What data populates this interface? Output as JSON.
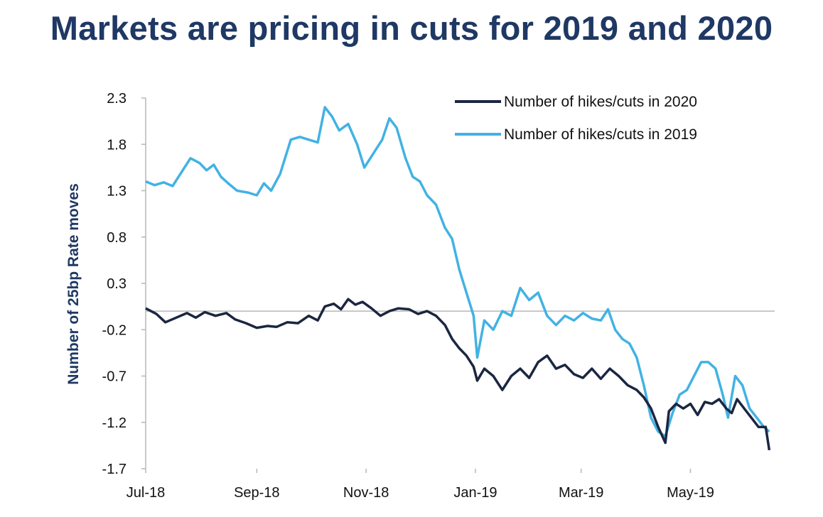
{
  "title": "Markets are pricing in cuts for 2019 and 2020",
  "colors": {
    "title": "#1f3864",
    "series_2020": "#1b2640",
    "series_2019": "#42b2e3",
    "axis": "#b7b7b7"
  },
  "chart_data": {
    "type": "line",
    "title": "Markets are pricing in cuts for 2019 and 2020",
    "xlabel": "",
    "ylabel": "Number of 25bp Rate moves",
    "x_range": [
      "2018-07-01",
      "2019-06-17"
    ],
    "ylim": [
      -1.7,
      2.3
    ],
    "y_ticks": [
      "2.3",
      "1.8",
      "1.3",
      "0.8",
      "0.3",
      "-0.2",
      "-0.7",
      "-1.2",
      "-1.7"
    ],
    "x_ticks": [
      {
        "label": "Jul-18",
        "date": "2018-07-01"
      },
      {
        "label": "Sep-18",
        "date": "2018-09-01"
      },
      {
        "label": "Nov-18",
        "date": "2018-11-01"
      },
      {
        "label": "Jan-19",
        "date": "2019-01-01"
      },
      {
        "label": "Mar-19",
        "date": "2019-03-01"
      },
      {
        "label": "May-19",
        "date": "2019-05-01"
      }
    ],
    "zero_line": 0,
    "grid": false,
    "legend_position": "top-right",
    "series": [
      {
        "name": "Number of hikes/cuts in 2020",
        "color": "#1b2640",
        "points": [
          [
            "2018-07-01",
            0.03
          ],
          [
            "2018-07-07",
            -0.03
          ],
          [
            "2018-07-12",
            -0.12
          ],
          [
            "2018-07-18",
            -0.07
          ],
          [
            "2018-07-24",
            -0.02
          ],
          [
            "2018-07-29",
            -0.07
          ],
          [
            "2018-08-03",
            -0.01
          ],
          [
            "2018-08-09",
            -0.05
          ],
          [
            "2018-08-15",
            -0.02
          ],
          [
            "2018-08-20",
            -0.09
          ],
          [
            "2018-08-26",
            -0.13
          ],
          [
            "2018-09-01",
            -0.18
          ],
          [
            "2018-09-07",
            -0.16
          ],
          [
            "2018-09-12",
            -0.17
          ],
          [
            "2018-09-18",
            -0.12
          ],
          [
            "2018-09-24",
            -0.13
          ],
          [
            "2018-09-30",
            -0.05
          ],
          [
            "2018-10-05",
            -0.1
          ],
          [
            "2018-10-09",
            0.05
          ],
          [
            "2018-10-14",
            0.08
          ],
          [
            "2018-10-18",
            0.02
          ],
          [
            "2018-10-22",
            0.13
          ],
          [
            "2018-10-26",
            0.07
          ],
          [
            "2018-10-30",
            0.1
          ],
          [
            "2018-11-04",
            0.03
          ],
          [
            "2018-11-09",
            -0.05
          ],
          [
            "2018-11-14",
            0.0
          ],
          [
            "2018-11-19",
            0.03
          ],
          [
            "2018-11-25",
            0.02
          ],
          [
            "2018-11-30",
            -0.03
          ],
          [
            "2018-12-05",
            0.0
          ],
          [
            "2018-12-10",
            -0.05
          ],
          [
            "2018-12-15",
            -0.15
          ],
          [
            "2018-12-19",
            -0.3
          ],
          [
            "2018-12-23",
            -0.4
          ],
          [
            "2018-12-27",
            -0.48
          ],
          [
            "2018-12-31",
            -0.6
          ],
          [
            "2019-01-02",
            -0.75
          ],
          [
            "2019-01-06",
            -0.62
          ],
          [
            "2019-01-11",
            -0.7
          ],
          [
            "2019-01-16",
            -0.85
          ],
          [
            "2019-01-21",
            -0.7
          ],
          [
            "2019-01-26",
            -0.62
          ],
          [
            "2019-01-31",
            -0.72
          ],
          [
            "2019-02-05",
            -0.55
          ],
          [
            "2019-02-10",
            -0.48
          ],
          [
            "2019-02-15",
            -0.62
          ],
          [
            "2019-02-20",
            -0.58
          ],
          [
            "2019-02-25",
            -0.68
          ],
          [
            "2019-03-02",
            -0.72
          ],
          [
            "2019-03-07",
            -0.62
          ],
          [
            "2019-03-12",
            -0.73
          ],
          [
            "2019-03-17",
            -0.62
          ],
          [
            "2019-03-22",
            -0.7
          ],
          [
            "2019-03-27",
            -0.8
          ],
          [
            "2019-04-01",
            -0.85
          ],
          [
            "2019-04-05",
            -0.93
          ],
          [
            "2019-04-09",
            -1.05
          ],
          [
            "2019-04-13",
            -1.25
          ],
          [
            "2019-04-17",
            -1.42
          ],
          [
            "2019-04-19",
            -1.08
          ],
          [
            "2019-04-23",
            -1.0
          ],
          [
            "2019-04-27",
            -1.05
          ],
          [
            "2019-05-01",
            -1.0
          ],
          [
            "2019-05-05",
            -1.12
          ],
          [
            "2019-05-09",
            -0.98
          ],
          [
            "2019-05-13",
            -1.0
          ],
          [
            "2019-05-17",
            -0.95
          ],
          [
            "2019-05-21",
            -1.05
          ],
          [
            "2019-05-24",
            -1.1
          ],
          [
            "2019-05-27",
            -0.95
          ],
          [
            "2019-05-31",
            -1.05
          ],
          [
            "2019-06-04",
            -1.15
          ],
          [
            "2019-06-08",
            -1.25
          ],
          [
            "2019-06-12",
            -1.25
          ],
          [
            "2019-06-14",
            -1.5
          ]
        ]
      },
      {
        "name": "Number of hikes/cuts in 2019",
        "color": "#42b2e3",
        "points": [
          [
            "2018-07-01",
            1.4
          ],
          [
            "2018-07-06",
            1.36
          ],
          [
            "2018-07-11",
            1.39
          ],
          [
            "2018-07-16",
            1.35
          ],
          [
            "2018-07-21",
            1.5
          ],
          [
            "2018-07-26",
            1.65
          ],
          [
            "2018-07-31",
            1.6
          ],
          [
            "2018-08-04",
            1.52
          ],
          [
            "2018-08-08",
            1.58
          ],
          [
            "2018-08-12",
            1.45
          ],
          [
            "2018-08-16",
            1.38
          ],
          [
            "2018-08-21",
            1.3
          ],
          [
            "2018-08-27",
            1.28
          ],
          [
            "2018-09-01",
            1.25
          ],
          [
            "2018-09-05",
            1.38
          ],
          [
            "2018-09-09",
            1.3
          ],
          [
            "2018-09-14",
            1.48
          ],
          [
            "2018-09-20",
            1.85
          ],
          [
            "2018-09-25",
            1.88
          ],
          [
            "2018-09-30",
            1.85
          ],
          [
            "2018-10-05",
            1.82
          ],
          [
            "2018-10-09",
            2.2
          ],
          [
            "2018-10-13",
            2.1
          ],
          [
            "2018-10-17",
            1.95
          ],
          [
            "2018-10-22",
            2.02
          ],
          [
            "2018-10-27",
            1.8
          ],
          [
            "2018-10-31",
            1.55
          ],
          [
            "2018-11-05",
            1.7
          ],
          [
            "2018-11-10",
            1.85
          ],
          [
            "2018-11-14",
            2.08
          ],
          [
            "2018-11-18",
            1.98
          ],
          [
            "2018-11-23",
            1.65
          ],
          [
            "2018-11-27",
            1.45
          ],
          [
            "2018-12-01",
            1.4
          ],
          [
            "2018-12-05",
            1.25
          ],
          [
            "2018-12-10",
            1.15
          ],
          [
            "2018-12-15",
            0.9
          ],
          [
            "2018-12-19",
            0.78
          ],
          [
            "2018-12-23",
            0.45
          ],
          [
            "2018-12-27",
            0.2
          ],
          [
            "2018-12-31",
            -0.05
          ],
          [
            "2019-01-02",
            -0.5
          ],
          [
            "2019-01-06",
            -0.1
          ],
          [
            "2019-01-11",
            -0.2
          ],
          [
            "2019-01-16",
            0.0
          ],
          [
            "2019-01-21",
            -0.05
          ],
          [
            "2019-01-26",
            0.25
          ],
          [
            "2019-01-31",
            0.12
          ],
          [
            "2019-02-05",
            0.2
          ],
          [
            "2019-02-10",
            -0.05
          ],
          [
            "2019-02-15",
            -0.15
          ],
          [
            "2019-02-20",
            -0.05
          ],
          [
            "2019-02-25",
            -0.1
          ],
          [
            "2019-03-02",
            -0.02
          ],
          [
            "2019-03-07",
            -0.08
          ],
          [
            "2019-03-12",
            -0.1
          ],
          [
            "2019-03-16",
            0.02
          ],
          [
            "2019-03-20",
            -0.2
          ],
          [
            "2019-03-24",
            -0.3
          ],
          [
            "2019-03-28",
            -0.35
          ],
          [
            "2019-04-01",
            -0.5
          ],
          [
            "2019-04-05",
            -0.8
          ],
          [
            "2019-04-09",
            -1.15
          ],
          [
            "2019-04-13",
            -1.3
          ],
          [
            "2019-04-17",
            -1.35
          ],
          [
            "2019-04-21",
            -1.1
          ],
          [
            "2019-04-25",
            -0.9
          ],
          [
            "2019-04-29",
            -0.85
          ],
          [
            "2019-05-03",
            -0.7
          ],
          [
            "2019-05-07",
            -0.55
          ],
          [
            "2019-05-11",
            -0.55
          ],
          [
            "2019-05-15",
            -0.62
          ],
          [
            "2019-05-19",
            -0.9
          ],
          [
            "2019-05-22",
            -1.15
          ],
          [
            "2019-05-26",
            -0.7
          ],
          [
            "2019-05-30",
            -0.8
          ],
          [
            "2019-06-03",
            -1.05
          ],
          [
            "2019-06-07",
            -1.15
          ],
          [
            "2019-06-11",
            -1.25
          ],
          [
            "2019-06-14",
            -1.3
          ]
        ]
      }
    ]
  }
}
